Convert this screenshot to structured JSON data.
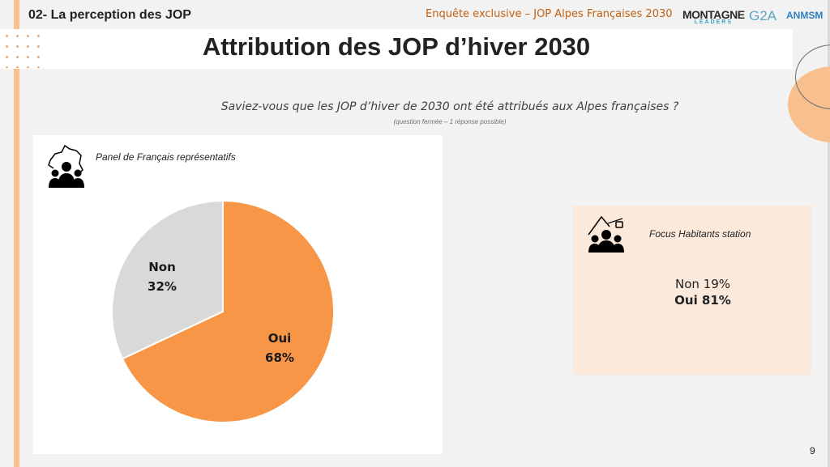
{
  "header": {
    "section": "02- La perception des JOP",
    "survey": "Enquête exclusive – JOP Alpes Françaises 2030",
    "title": "Attribution des JOP d’hiver 2030",
    "logos": {
      "montagne": "MONTAGNE",
      "montagne_sub": "LEADERS",
      "g2a": "G2A",
      "anmsm": "ANMSM"
    }
  },
  "question": {
    "text": "Saviez-vous que les JOP d’hiver de 2030 ont été attribués aux Alpes françaises ?",
    "note": "(question fermée – 1 réponse possible)"
  },
  "panel": {
    "label": "Panel de Français représentatifs",
    "icon": "france-people-icon"
  },
  "focus": {
    "label": "Focus Habitants station",
    "icon": "mountain-people-icon",
    "non": "Non 19%",
    "oui": "Oui 81%"
  },
  "page_number": "9",
  "colors": {
    "oui": "#f79646",
    "non": "#d9d9d9",
    "accent": "#f9c08f"
  },
  "chart_data": {
    "type": "pie",
    "title": "Panel de Français représentatifs",
    "categories": [
      "Non",
      "Oui"
    ],
    "values": [
      32,
      68
    ],
    "labels": [
      {
        "name": "Non",
        "value": "32%"
      },
      {
        "name": "Oui",
        "value": "68%"
      }
    ],
    "colors": [
      "#d9d9d9",
      "#f79646"
    ]
  }
}
